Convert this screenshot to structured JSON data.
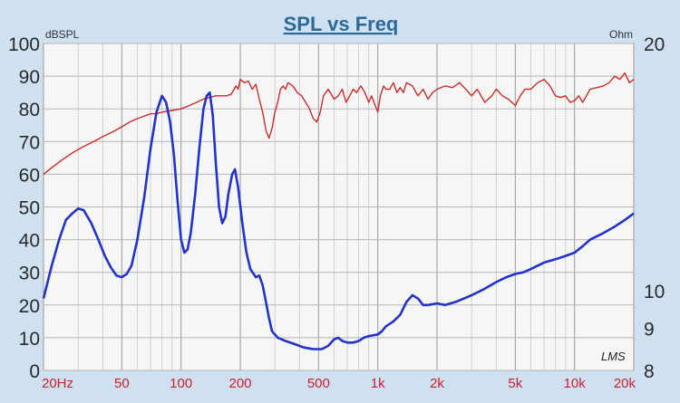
{
  "chart_data": {
    "type": "line",
    "title": "SPL vs Freq",
    "left_unit": "dBSPL",
    "right_unit": "Ohm",
    "watermark": "LMS",
    "x_scale": "log",
    "xlim": [
      20,
      20000
    ],
    "x_tick_labels": [
      {
        "value": 20,
        "label": "20Hz"
      },
      {
        "value": 50,
        "label": "50"
      },
      {
        "value": 100,
        "label": "100"
      },
      {
        "value": 200,
        "label": "200"
      },
      {
        "value": 500,
        "label": "500"
      },
      {
        "value": 1000,
        "label": "1k"
      },
      {
        "value": 2000,
        "label": "2k"
      },
      {
        "value": 5000,
        "label": "5k"
      },
      {
        "value": 10000,
        "label": "10k"
      },
      {
        "value": 20000,
        "label": "20k"
      }
    ],
    "y_left": {
      "lim": [
        0,
        100
      ],
      "ticks": [
        0,
        10,
        20,
        30,
        40,
        50,
        60,
        70,
        80,
        90,
        100
      ]
    },
    "y_right": {
      "ticks": [
        {
          "value": 20,
          "label": "20"
        },
        {
          "value": 10,
          "label": "10"
        },
        {
          "value": 9,
          "label": "9"
        },
        {
          "value": 8,
          "label": "8"
        }
      ]
    },
    "grid": true,
    "colors": {
      "spl": "#cc2b2b",
      "impedance": "#2233cc",
      "title": "#2b6a9a",
      "tick_labels_x": "#cc1f2f",
      "plot_bg": "#f6f6f6"
    },
    "series": [
      {
        "key": "spl",
        "axis": "left",
        "points": [
          [
            20,
            60
          ],
          [
            22,
            62
          ],
          [
            25,
            64.5
          ],
          [
            28,
            66.5
          ],
          [
            32,
            68.5
          ],
          [
            36,
            70
          ],
          [
            40,
            71.5
          ],
          [
            45,
            73
          ],
          [
            50,
            74.5
          ],
          [
            55,
            76
          ],
          [
            60,
            77
          ],
          [
            65,
            77.8
          ],
          [
            70,
            78.5
          ],
          [
            75,
            78.5
          ],
          [
            80,
            79
          ],
          [
            90,
            79.5
          ],
          [
            100,
            80
          ],
          [
            110,
            81
          ],
          [
            120,
            82
          ],
          [
            130,
            83
          ],
          [
            140,
            83.5
          ],
          [
            150,
            84
          ],
          [
            160,
            84
          ],
          [
            170,
            84
          ],
          [
            180,
            84.5
          ],
          [
            190,
            87
          ],
          [
            195,
            86
          ],
          [
            200,
            89
          ],
          [
            210,
            88
          ],
          [
            220,
            88.5
          ],
          [
            230,
            86
          ],
          [
            240,
            87.5
          ],
          [
            250,
            83
          ],
          [
            260,
            79
          ],
          [
            270,
            73.5
          ],
          [
            280,
            71
          ],
          [
            290,
            74
          ],
          [
            300,
            79
          ],
          [
            310,
            82
          ],
          [
            320,
            86
          ],
          [
            330,
            87
          ],
          [
            340,
            86
          ],
          [
            350,
            88
          ],
          [
            370,
            87
          ],
          [
            390,
            85
          ],
          [
            410,
            84
          ],
          [
            430,
            82
          ],
          [
            450,
            80
          ],
          [
            470,
            77
          ],
          [
            490,
            76
          ],
          [
            510,
            79
          ],
          [
            530,
            84
          ],
          [
            560,
            86
          ],
          [
            600,
            83
          ],
          [
            630,
            84
          ],
          [
            660,
            86
          ],
          [
            690,
            82
          ],
          [
            720,
            84
          ],
          [
            750,
            86
          ],
          [
            780,
            85
          ],
          [
            820,
            87
          ],
          [
            860,
            85
          ],
          [
            900,
            82
          ],
          [
            930,
            84
          ],
          [
            970,
            81
          ],
          [
            1000,
            79
          ],
          [
            1030,
            84
          ],
          [
            1070,
            87
          ],
          [
            1100,
            86
          ],
          [
            1150,
            86
          ],
          [
            1200,
            88
          ],
          [
            1250,
            85
          ],
          [
            1300,
            86.5
          ],
          [
            1350,
            85
          ],
          [
            1400,
            88
          ],
          [
            1500,
            87
          ],
          [
            1600,
            84
          ],
          [
            1700,
            86
          ],
          [
            1800,
            83
          ],
          [
            1900,
            85
          ],
          [
            2000,
            86
          ],
          [
            2200,
            87
          ],
          [
            2400,
            86.5
          ],
          [
            2600,
            88
          ],
          [
            2800,
            86
          ],
          [
            3000,
            84
          ],
          [
            3200,
            86
          ],
          [
            3500,
            82
          ],
          [
            3800,
            84
          ],
          [
            4000,
            86
          ],
          [
            4300,
            84
          ],
          [
            4600,
            83
          ],
          [
            5000,
            81
          ],
          [
            5300,
            84
          ],
          [
            5600,
            86
          ],
          [
            6000,
            86
          ],
          [
            6500,
            88
          ],
          [
            7000,
            89
          ],
          [
            7500,
            87
          ],
          [
            8000,
            84
          ],
          [
            8500,
            83.5
          ],
          [
            9000,
            84
          ],
          [
            9500,
            82
          ],
          [
            10000,
            82.5
          ],
          [
            10500,
            84
          ],
          [
            11000,
            82
          ],
          [
            11500,
            84
          ],
          [
            12000,
            86
          ],
          [
            13000,
            86.5
          ],
          [
            14000,
            87
          ],
          [
            15000,
            88
          ],
          [
            16000,
            90
          ],
          [
            17000,
            89
          ],
          [
            18000,
            91
          ],
          [
            19000,
            88
          ],
          [
            20000,
            89
          ]
        ]
      },
      {
        "key": "impedance",
        "axis": "left",
        "points": [
          [
            20,
            22
          ],
          [
            22,
            32
          ],
          [
            24,
            40
          ],
          [
            26,
            46
          ],
          [
            28,
            48
          ],
          [
            30,
            49.5
          ],
          [
            32,
            49
          ],
          [
            35,
            45
          ],
          [
            38,
            40
          ],
          [
            41,
            35
          ],
          [
            44,
            31.5
          ],
          [
            47,
            29
          ],
          [
            50,
            28.5
          ],
          [
            53,
            29.5
          ],
          [
            56,
            32
          ],
          [
            60,
            40
          ],
          [
            65,
            53
          ],
          [
            70,
            68
          ],
          [
            75,
            79
          ],
          [
            80,
            84
          ],
          [
            84,
            82
          ],
          [
            88,
            76
          ],
          [
            92,
            66
          ],
          [
            96,
            52
          ],
          [
            100,
            40
          ],
          [
            104,
            36
          ],
          [
            108,
            37
          ],
          [
            112,
            42
          ],
          [
            118,
            54
          ],
          [
            124,
            68
          ],
          [
            130,
            80
          ],
          [
            135,
            84
          ],
          [
            140,
            85
          ],
          [
            145,
            78
          ],
          [
            150,
            64
          ],
          [
            156,
            50
          ],
          [
            162,
            45
          ],
          [
            168,
            47
          ],
          [
            174,
            54
          ],
          [
            182,
            60
          ],
          [
            188,
            61.5
          ],
          [
            195,
            56
          ],
          [
            205,
            45
          ],
          [
            215,
            36
          ],
          [
            225,
            31
          ],
          [
            240,
            28.5
          ],
          [
            250,
            29
          ],
          [
            260,
            26
          ],
          [
            270,
            21
          ],
          [
            280,
            16
          ],
          [
            290,
            12
          ],
          [
            310,
            10
          ],
          [
            340,
            9
          ],
          [
            380,
            8
          ],
          [
            420,
            7
          ],
          [
            470,
            6.5
          ],
          [
            520,
            6.5
          ],
          [
            560,
            7.5
          ],
          [
            600,
            9.5
          ],
          [
            630,
            10
          ],
          [
            660,
            9
          ],
          [
            700,
            8.5
          ],
          [
            750,
            8.5
          ],
          [
            800,
            9
          ],
          [
            850,
            10
          ],
          [
            900,
            10.5
          ],
          [
            1000,
            11
          ],
          [
            1050,
            12
          ],
          [
            1100,
            13.5
          ],
          [
            1200,
            15
          ],
          [
            1300,
            17
          ],
          [
            1400,
            21
          ],
          [
            1500,
            23
          ],
          [
            1600,
            22
          ],
          [
            1700,
            20
          ],
          [
            1800,
            20
          ],
          [
            2000,
            20.5
          ],
          [
            2200,
            20
          ],
          [
            2500,
            21
          ],
          [
            3000,
            23
          ],
          [
            3500,
            25
          ],
          [
            4000,
            27
          ],
          [
            4500,
            28.5
          ],
          [
            5000,
            29.5
          ],
          [
            5500,
            30
          ],
          [
            6000,
            31
          ],
          [
            7000,
            33
          ],
          [
            8000,
            34
          ],
          [
            9000,
            35
          ],
          [
            10000,
            36
          ],
          [
            11000,
            38
          ],
          [
            12000,
            40
          ],
          [
            14000,
            42
          ],
          [
            16000,
            44
          ],
          [
            18000,
            46
          ],
          [
            20000,
            48
          ]
        ]
      }
    ]
  }
}
